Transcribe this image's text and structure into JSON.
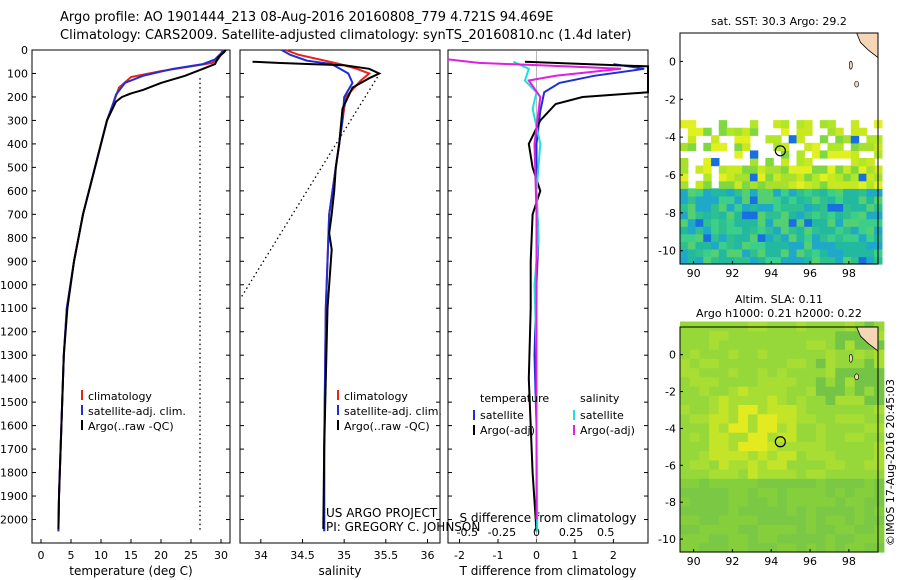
{
  "header": {
    "line1": "Argo profile: AO 1901444_213 08-Aug-2016 20160808_779 4.721S 94.469E",
    "line2": "Climatology: CARS2009. Satellite-adjusted climatology: synTS_20160810.nc (1.4d later)"
  },
  "colors": {
    "climatology": "#e8211a",
    "satellite": "#1f2fd8",
    "argo": "#000000",
    "sat_s": "#22dddd",
    "argo_adj_s": "#e020e0"
  },
  "depth_axis": {
    "ylim": [
      0,
      2100
    ],
    "ticks": [
      0,
      100,
      200,
      300,
      400,
      500,
      600,
      700,
      800,
      900,
      1000,
      1100,
      1200,
      1300,
      1400,
      1500,
      1600,
      1700,
      1800,
      1900,
      2000
    ]
  },
  "chart_data": [
    {
      "type": "line",
      "xlabel": "temperature (deg C)",
      "ylabel": "",
      "xlim": [
        -1.5,
        31.5
      ],
      "ylim": [
        0,
        2100
      ],
      "y_inverted": true,
      "xticks": [
        0,
        5,
        10,
        15,
        20,
        25,
        30
      ],
      "legend": [
        "climatology",
        "satellite-adj. clim.",
        "Argo(..raw -QC)"
      ],
      "reference_dotted": {
        "x": [
          26.5,
          26.5
        ],
        "y": [
          120,
          2050
        ]
      },
      "series": [
        {
          "name": "climatology",
          "color": "#e8211a",
          "x": [
            30.2,
            30,
            29.5,
            28.5,
            25,
            20,
            15,
            13,
            12,
            11,
            10,
            9,
            8,
            7,
            5.5,
            4.3,
            3.8,
            3.4,
            3.0,
            2.9
          ],
          "y": [
            0,
            20,
            40,
            55,
            70,
            90,
            115,
            160,
            230,
            300,
            400,
            500,
            600,
            700,
            900,
            1100,
            1300,
            1600,
            1900,
            2050
          ]
        },
        {
          "name": "satellite-adj. clim.",
          "color": "#1f2fd8",
          "x": [
            30.5,
            30,
            29,
            27,
            22,
            17,
            14,
            12.5,
            12,
            11,
            10,
            9,
            8,
            7,
            5.5,
            4.3,
            3.8,
            3.4,
            3.0,
            2.9
          ],
          "y": [
            0,
            15,
            40,
            60,
            80,
            110,
            140,
            190,
            230,
            300,
            400,
            500,
            600,
            700,
            900,
            1100,
            1300,
            1600,
            1900,
            2050
          ]
        },
        {
          "name": "Argo(..raw -QC)",
          "color": "#000000",
          "x": [
            30.8,
            30.5,
            29.6,
            29,
            27,
            24,
            20,
            17,
            15,
            13.5,
            12.5,
            11,
            10,
            9,
            8,
            7,
            5.5,
            4.4,
            3.8,
            3.4,
            3.0,
            2.9
          ],
          "y": [
            0,
            10,
            30,
            60,
            80,
            110,
            140,
            170,
            185,
            200,
            220,
            300,
            400,
            500,
            600,
            700,
            900,
            1100,
            1300,
            1600,
            1900,
            2040
          ]
        }
      ]
    },
    {
      "type": "line",
      "xlabel": "salinity",
      "ylabel": "",
      "xlim": [
        33.75,
        36.15
      ],
      "ylim": [
        0,
        2100
      ],
      "y_inverted": true,
      "xticks": [
        34,
        34.5,
        35,
        35.5,
        36
      ],
      "legend": [
        "climatology",
        "satellite-adj. clim.",
        "Argo(..raw -QC)"
      ],
      "annotation": [
        "US ARGO PROJECT",
        "PI: GREGORY C. JOHNSON"
      ],
      "reference_dotted": {
        "x": [
          35.4,
          33.77
        ],
        "y": [
          115,
          1050
        ]
      },
      "series": [
        {
          "name": "climatology",
          "color": "#e8211a",
          "x": [
            34.3,
            34.45,
            34.7,
            34.95,
            35.15,
            35.3,
            35.2,
            35.02,
            34.98,
            34.94,
            34.9,
            34.86,
            34.82,
            34.8,
            34.78,
            34.77,
            34.76,
            34.76
          ],
          "y": [
            0,
            20,
            40,
            60,
            80,
            100,
            130,
            200,
            300,
            400,
            500,
            600,
            700,
            900,
            1100,
            1400,
            1700,
            2050
          ]
        },
        {
          "name": "satellite-adj. clim.",
          "color": "#1f2fd8",
          "x": [
            34.25,
            34.35,
            34.55,
            34.85,
            34.95,
            35.05,
            35.1,
            35.0,
            34.98,
            34.94,
            34.9,
            34.86,
            34.82,
            34.8,
            34.78,
            34.77,
            34.76,
            34.76
          ],
          "y": [
            0,
            20,
            45,
            60,
            80,
            100,
            140,
            200,
            300,
            400,
            500,
            600,
            700,
            900,
            1100,
            1400,
            1700,
            2050
          ]
        },
        {
          "name": "Argo(..raw -QC)",
          "color": "#000000",
          "x": [
            33.9,
            34.2,
            34.6,
            35,
            35.3,
            35.42,
            35.3,
            35.1,
            34.98,
            34.94,
            34.9,
            34.88,
            34.85,
            34.82,
            34.85,
            34.8,
            34.78,
            34.76,
            34.75
          ],
          "y": [
            50,
            55,
            60,
            65,
            80,
            100,
            120,
            160,
            250,
            400,
            500,
            600,
            700,
            780,
            850,
            1100,
            1400,
            1700,
            2040
          ]
        }
      ]
    },
    {
      "type": "line",
      "xlabel": "T difference from climatology",
      "ylabel": "",
      "xlim": [
        -2.3,
        2.9
      ],
      "ylim": [
        0,
        2100
      ],
      "y_inverted": true,
      "xticks": [
        -2,
        -1,
        0,
        1,
        2
      ],
      "top_xlabel": "S difference from climatology",
      "top_xticks": [
        -0.5,
        -0.25,
        0,
        0.25,
        0.5
      ],
      "legend": [
        "temperature",
        "satellite",
        "Argo(-adj)",
        "salinity",
        "satellite",
        "Argo(-adj)"
      ],
      "series": [
        {
          "name": "satellite",
          "color": "#1f2fd8",
          "x": [
            2.0,
            2.8,
            1.5,
            0.6,
            0.2,
            0.1,
            0.0,
            0.0,
            0.05,
            0.0,
            -0.05,
            0.0,
            0.0,
            0.0
          ],
          "y": [
            60,
            80,
            110,
            140,
            180,
            260,
            400,
            600,
            800,
            1000,
            1300,
            1600,
            1900,
            2050
          ]
        },
        {
          "name": "Argo(-adj)",
          "color": "#000000",
          "x": [
            -0.3,
            2.9,
            2.9,
            1.2,
            0.5,
            0.1,
            -0.2,
            -0.1,
            0.1,
            -0.1,
            -0.15,
            -0.15,
            -0.2,
            -0.1,
            0.0
          ],
          "y": [
            50,
            70,
            180,
            200,
            230,
            300,
            400,
            500,
            600,
            700,
            900,
            1100,
            1400,
            1800,
            2050
          ]
        },
        {
          "name": "satellite",
          "color": "#22dddd",
          "x": [
            -0.6,
            -0.2,
            -0.3,
            0.0,
            -0.1,
            0.1,
            0.0,
            0.05,
            -0.05,
            0.0,
            0.0,
            0.02
          ],
          "y": [
            50,
            80,
            130,
            180,
            250,
            400,
            600,
            800,
            1000,
            1300,
            1600,
            2050
          ]
        },
        {
          "name": "Argo(-adj)",
          "color": "#e020e0",
          "x": [
            -2.3,
            -1.5,
            0.8,
            2.2,
            0.5,
            -0.2,
            0.1,
            -0.05,
            0.0,
            0.0,
            0.0,
            0.0
          ],
          "y": [
            40,
            55,
            70,
            80,
            110,
            130,
            200,
            400,
            700,
            1000,
            1400,
            2000
          ]
        }
      ]
    },
    {
      "type": "heatmap",
      "title": "sat. SST: 30.3  Argo: 29.2",
      "xlim": [
        89.3,
        99.5
      ],
      "ylim": [
        -10.7,
        1.5
      ],
      "xticks": [
        90,
        92,
        94,
        96,
        98
      ],
      "yticks": [
        0,
        -2,
        -4,
        -6,
        -8,
        -10
      ],
      "marker": {
        "lon": 94.469,
        "lat": -4.721
      }
    },
    {
      "type": "heatmap",
      "title": "Altim. SLA: 0.11",
      "subtitle": "Argo h1000: 0.21  h2000: 0.22",
      "xlim": [
        89.3,
        99.5
      ],
      "ylim": [
        -10.7,
        1.5
      ],
      "xticks": [
        90,
        92,
        94,
        96,
        98
      ],
      "yticks": [
        0,
        -2,
        -4,
        -6,
        -8,
        -10
      ],
      "marker": {
        "lon": 94.469,
        "lat": -4.721
      }
    }
  ],
  "credit": "©IMOS 17-Aug-2016 20:45:03"
}
